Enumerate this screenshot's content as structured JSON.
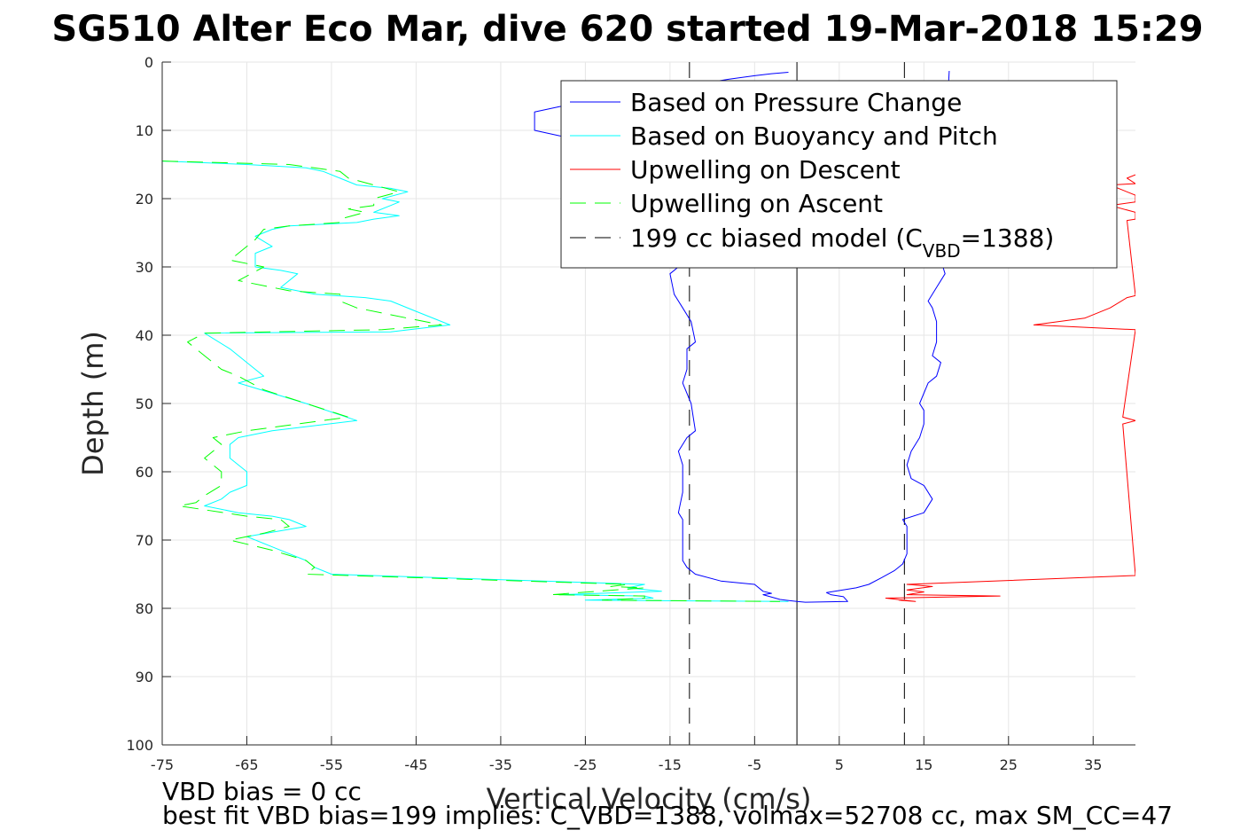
{
  "chart_data": {
    "type": "line",
    "title": "SG510 Alter Eco Mar, dive 620 started 19-Mar-2018 15:29",
    "xlabel": "Vertical Velocity (cm/s)",
    "ylabel": "Depth (m)",
    "xlim": [
      -75,
      40
    ],
    "ylim": [
      0,
      100
    ],
    "y_reversed": true,
    "grid": true,
    "legend_placement": "top-right",
    "xticks": [
      "-75",
      "-65",
      "-55",
      "-45",
      "-35",
      "-25",
      "-15",
      "-5",
      "5",
      "15",
      "25",
      "35"
    ],
    "yticks": [
      "0",
      "10",
      "20",
      "30",
      "40",
      "50",
      "60",
      "70",
      "80",
      "90",
      "100"
    ],
    "colors": {
      "pressure": "#0000ff",
      "buoyancy": "#00ffff",
      "upwell_descent": "#ff0000",
      "upwell_ascent": "#00ff00",
      "model": "#000000"
    },
    "legend": {
      "pressure": "Based on Pressure Change",
      "buoyancy": "Based on Buoyancy and Pitch",
      "upwell_descent": "Upwelling on Descent",
      "upwell_ascent": "Upwelling on Ascent",
      "model_prefix": "199 cc biased model (C",
      "model_sub": "VBD",
      "model_suffix": "=1388)"
    },
    "series": [
      {
        "key": "pressure",
        "style": "solid",
        "points": [
          [
            -1,
            1.5
          ],
          [
            -3,
            1.7
          ],
          [
            -5,
            2
          ],
          [
            -8,
            2.5
          ],
          [
            -13,
            3.5
          ],
          [
            -20,
            5
          ],
          [
            -28,
            6.5
          ],
          [
            -31,
            7.3
          ],
          [
            -31,
            10
          ],
          [
            -28,
            10.8
          ],
          [
            -26,
            11.5
          ],
          [
            -24,
            12.5
          ],
          [
            -22,
            13.5
          ],
          [
            -20,
            14.5
          ],
          [
            -14,
            30
          ],
          [
            -15,
            31
          ],
          [
            -14.5,
            34
          ],
          [
            -13.5,
            36
          ],
          [
            -12.5,
            38
          ],
          [
            -12,
            41
          ],
          [
            -13,
            42
          ],
          [
            -13,
            45
          ],
          [
            -13.5,
            47
          ],
          [
            -12.5,
            50
          ],
          [
            -12,
            54
          ],
          [
            -13,
            55
          ],
          [
            -14,
            57
          ],
          [
            -13.5,
            59
          ],
          [
            -13.5,
            63
          ],
          [
            -14,
            66
          ],
          [
            -13.5,
            67
          ],
          [
            -13.5,
            69
          ],
          [
            -13.5,
            71
          ],
          [
            -13.5,
            73
          ],
          [
            -13,
            74
          ],
          [
            -12,
            75
          ],
          [
            -9,
            76
          ],
          [
            -5,
            76.5
          ],
          [
            -4,
            77.5
          ],
          [
            -3,
            77.8
          ],
          [
            -4,
            78
          ],
          [
            -2,
            78.7
          ],
          [
            0,
            79
          ],
          [
            1,
            79.1
          ],
          [
            6,
            79
          ],
          [
            5.5,
            78.3
          ],
          [
            4,
            78
          ],
          [
            3.5,
            77.7
          ],
          [
            7,
            77
          ],
          [
            8.5,
            76.5
          ],
          [
            10,
            75.5
          ],
          [
            11.5,
            74.5
          ],
          [
            12.5,
            73.5
          ],
          [
            13,
            72
          ],
          [
            13,
            70
          ],
          [
            13,
            68
          ],
          [
            12.5,
            67
          ],
          [
            15,
            66
          ],
          [
            16,
            64
          ],
          [
            15,
            62
          ],
          [
            13.5,
            61
          ],
          [
            13,
            59
          ],
          [
            13.5,
            57
          ],
          [
            14.5,
            55
          ],
          [
            15,
            53
          ],
          [
            15,
            51
          ],
          [
            14.5,
            50
          ],
          [
            15.5,
            47
          ],
          [
            16.5,
            46
          ],
          [
            17,
            44
          ],
          [
            16,
            43
          ],
          [
            16.5,
            41
          ],
          [
            16.5,
            38
          ],
          [
            16,
            36
          ],
          [
            15.5,
            35
          ],
          [
            16.5,
            33
          ],
          [
            17.5,
            31
          ],
          [
            17,
            29
          ],
          [
            17,
            25
          ],
          [
            18,
            1.3
          ]
        ]
      },
      {
        "key": "buoyancy",
        "style": "solid",
        "points": [
          [
            -75,
            14.5
          ],
          [
            -65,
            15
          ],
          [
            -58,
            15.5
          ],
          [
            -56,
            16
          ],
          [
            -54,
            17
          ],
          [
            -52,
            18
          ],
          [
            -48,
            18.5
          ],
          [
            -46,
            19
          ],
          [
            -49,
            20
          ],
          [
            -47,
            20.5
          ],
          [
            -48,
            21
          ],
          [
            -50,
            22
          ],
          [
            -47,
            22.5
          ],
          [
            -50,
            23
          ],
          [
            -52,
            23.5
          ],
          [
            -60,
            24
          ],
          [
            -62,
            24.5
          ],
          [
            -64,
            25.5
          ],
          [
            -62,
            27
          ],
          [
            -64,
            28
          ],
          [
            -64,
            30
          ],
          [
            -61,
            30.5
          ],
          [
            -59,
            31
          ],
          [
            -61,
            33
          ],
          [
            -57,
            34
          ],
          [
            -51,
            34.5
          ],
          [
            -48,
            35
          ],
          [
            -45,
            36.5
          ],
          [
            -41,
            38.5
          ],
          [
            -48,
            39.5
          ],
          [
            -70,
            39.7
          ],
          [
            -67,
            42
          ],
          [
            -64,
            45
          ],
          [
            -63,
            46
          ],
          [
            -66,
            47
          ],
          [
            -58,
            50
          ],
          [
            -52,
            52.5
          ],
          [
            -62,
            54
          ],
          [
            -66,
            55
          ],
          [
            -67,
            56
          ],
          [
            -67,
            58
          ],
          [
            -65,
            60
          ],
          [
            -65,
            62
          ],
          [
            -67,
            63
          ],
          [
            -68,
            64
          ],
          [
            -70,
            65
          ],
          [
            -66,
            66
          ],
          [
            -62,
            66.5
          ],
          [
            -60,
            67
          ],
          [
            -58,
            68
          ],
          [
            -65,
            69.5
          ],
          [
            -62,
            71
          ],
          [
            -58,
            73
          ],
          [
            -57,
            74
          ],
          [
            -56,
            74.5
          ],
          [
            -55,
            75
          ],
          [
            -18,
            76.5
          ],
          [
            -20,
            77
          ],
          [
            -16,
            77.5
          ],
          [
            -28,
            78
          ],
          [
            -18,
            78.2
          ],
          [
            -17,
            78.5
          ],
          [
            -25,
            78.8
          ],
          [
            -1,
            79
          ]
        ]
      },
      {
        "key": "upwell_ascent",
        "style": "dashed",
        "points": [
          [
            -75,
            14.5
          ],
          [
            -60,
            15
          ],
          [
            -54,
            16
          ],
          [
            -53,
            17
          ],
          [
            -50,
            18
          ],
          [
            -47,
            19
          ],
          [
            -50,
            20
          ],
          [
            -50,
            21
          ],
          [
            -53,
            21.5
          ],
          [
            -51,
            22
          ],
          [
            -54,
            23
          ],
          [
            -54,
            23.5
          ],
          [
            -60,
            24
          ],
          [
            -63,
            24.5
          ],
          [
            -64,
            26
          ],
          [
            -67,
            29
          ],
          [
            -63,
            30
          ],
          [
            -66,
            32
          ],
          [
            -60,
            33.5
          ],
          [
            -54,
            34
          ],
          [
            -54,
            35
          ],
          [
            -52,
            36
          ],
          [
            -46,
            37.5
          ],
          [
            -42,
            38.5
          ],
          [
            -49,
            39.2
          ],
          [
            -70,
            39.7
          ],
          [
            -72,
            41
          ],
          [
            -70,
            43
          ],
          [
            -68,
            45
          ],
          [
            -66,
            46
          ],
          [
            -63,
            48
          ],
          [
            -58,
            50
          ],
          [
            -53,
            52
          ],
          [
            -65,
            54
          ],
          [
            -69,
            55
          ],
          [
            -68,
            56
          ],
          [
            -70,
            58
          ],
          [
            -68,
            60
          ],
          [
            -68,
            62
          ],
          [
            -70,
            63.5
          ],
          [
            -71,
            64.5
          ],
          [
            -73,
            65
          ],
          [
            -65,
            66.5
          ],
          [
            -61,
            67
          ],
          [
            -60,
            68
          ],
          [
            -63,
            69
          ],
          [
            -67,
            70
          ],
          [
            -62,
            71.5
          ],
          [
            -58,
            73
          ],
          [
            -57,
            74
          ],
          [
            -58,
            75
          ],
          [
            -20,
            76.5
          ],
          [
            -22,
            76.8
          ],
          [
            -18,
            77
          ],
          [
            -29,
            78
          ],
          [
            -18,
            78.2
          ],
          [
            -18,
            78.5
          ],
          [
            -23,
            78.8
          ],
          [
            -2,
            79
          ]
        ]
      },
      {
        "key": "upwell_descent",
        "style": "solid",
        "points": [
          [
            40,
            16.5
          ],
          [
            39,
            17
          ],
          [
            40,
            17.8
          ],
          [
            37,
            18
          ],
          [
            40,
            19.5
          ],
          [
            40,
            20.5
          ],
          [
            37,
            21
          ],
          [
            40,
            22
          ],
          [
            40,
            23
          ],
          [
            39,
            23.2
          ],
          [
            40,
            34.2
          ],
          [
            39,
            34.5
          ],
          [
            37,
            36
          ],
          [
            34,
            37.5
          ],
          [
            28,
            38.5
          ],
          [
            40,
            39.2
          ],
          [
            38.5,
            52
          ],
          [
            40,
            52.5
          ],
          [
            38.5,
            53
          ],
          [
            40,
            75.2
          ],
          [
            13,
            76.5
          ],
          [
            16,
            76.8
          ],
          [
            13,
            77.3
          ],
          [
            15,
            77.6
          ],
          [
            13,
            78
          ],
          [
            24,
            78.2
          ],
          [
            10.5,
            78.5
          ],
          [
            14,
            79
          ],
          [
            12,
            78.8
          ]
        ]
      }
    ],
    "reference_lines": [
      {
        "key": "zero",
        "x": 0,
        "style": "solid"
      },
      {
        "key": "model_descent",
        "x": -12.7,
        "style": "dashed"
      },
      {
        "key": "model_ascent",
        "x": 12.7,
        "style": "dashed"
      }
    ],
    "footer": {
      "line1": "VBD bias = 0 cc",
      "line2": "best fit VBD bias=199 implies: C_VBD=1388, volmax=52708 cc, max SM_CC=47"
    }
  }
}
